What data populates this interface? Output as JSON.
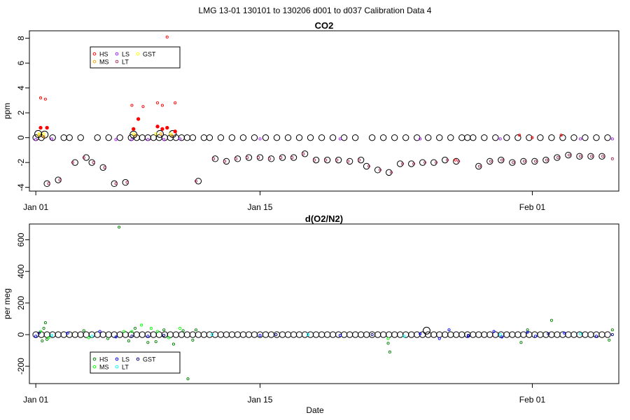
{
  "figure": {
    "title": "LMG   13-01    130101 to 130206    d001 to d037   Calibration Data 4",
    "xlabel": "Date"
  },
  "chart_data": [
    {
      "type": "scatter",
      "title": "CO2",
      "ylabel": "ppm",
      "xlabel": "",
      "xlim": [
        0.6,
        37.4
      ],
      "ylim": [
        -4.3,
        8.6
      ],
      "x_ticks": [
        {
          "value": 1,
          "label": "Jan 01"
        },
        {
          "value": 15,
          "label": "Jan 15"
        },
        {
          "value": 32,
          "label": "Feb 01"
        }
      ],
      "y_ticks": [
        -4,
        -2,
        0,
        2,
        4,
        6,
        8
      ],
      "grid": false,
      "legend": {
        "position": "top-left",
        "entries": [
          {
            "name": "HS",
            "color": "#ff0000"
          },
          {
            "name": "MS",
            "color": "#ffa500"
          },
          {
            "name": "LS",
            "color": "#a020f0"
          },
          {
            "name": "LT",
            "color": "#b03060"
          },
          {
            "name": "GST",
            "color": "#ffff00"
          }
        ]
      },
      "series": [
        {
          "name": "HS",
          "color": "#ff0000",
          "points": [
            [
              1.3,
              3.2
            ],
            [
              1.6,
              3.1
            ],
            [
              7.0,
              2.6
            ],
            [
              7.7,
              2.5
            ],
            [
              8.6,
              2.8
            ],
            [
              8.9,
              2.6
            ],
            [
              9.7,
              2.8
            ],
            [
              9.2,
              8.1
            ],
            [
              1.3,
              0.8
            ],
            [
              1.7,
              0.8
            ],
            [
              7.1,
              0.7
            ],
            [
              7.4,
              1.5
            ],
            [
              8.6,
              0.9
            ],
            [
              8.9,
              0.7
            ],
            [
              9.2,
              0.8
            ],
            [
              9.7,
              0.5
            ],
            [
              27.2,
              -1.8
            ],
            [
              31.2,
              0.2
            ],
            [
              32.0,
              0.0
            ],
            [
              33.8,
              0.2
            ]
          ]
        },
        {
          "name": "MS",
          "color": "#ffa500",
          "points": [
            [
              1.2,
              0.2
            ],
            [
              1.5,
              0.1
            ],
            [
              7.2,
              0.2
            ],
            [
              8.8,
              0.3
            ],
            [
              9.5,
              0.2
            ]
          ]
        },
        {
          "name": "LS",
          "color": "#a020f0",
          "points": [
            [
              1.0,
              -0.15
            ],
            [
              2.0,
              -0.1
            ],
            [
              6.0,
              -0.15
            ],
            [
              7.0,
              -0.15
            ],
            [
              8.0,
              -0.15
            ],
            [
              9.0,
              -0.15
            ],
            [
              10.0,
              -0.1
            ],
            [
              15.0,
              -0.1
            ],
            [
              20.0,
              -0.1
            ],
            [
              25.0,
              -0.1
            ],
            [
              30.0,
              -0.1
            ],
            [
              35.0,
              -0.1
            ],
            [
              37.0,
              -0.1
            ]
          ]
        },
        {
          "name": "LT",
          "color": "#b03060",
          "points": [
            [
              1.8,
              -3.7
            ],
            [
              2.5,
              -3.4
            ],
            [
              3.3,
              -2.0
            ],
            [
              4.0,
              -1.6
            ],
            [
              4.6,
              -2.0
            ],
            [
              5.3,
              -2.4
            ],
            [
              6.0,
              -3.7
            ],
            [
              6.7,
              -3.6
            ],
            [
              11.0,
              -3.5
            ],
            [
              12.1,
              -1.7
            ],
            [
              12.8,
              -1.9
            ],
            [
              13.5,
              -1.7
            ],
            [
              14.2,
              -1.6
            ],
            [
              14.9,
              -1.6
            ],
            [
              15.6,
              -1.7
            ],
            [
              16.3,
              -1.6
            ],
            [
              17.0,
              -1.6
            ],
            [
              17.7,
              -1.3
            ],
            [
              18.4,
              -1.8
            ],
            [
              19.1,
              -1.8
            ],
            [
              19.8,
              -1.8
            ],
            [
              20.5,
              -1.9
            ],
            [
              21.2,
              -1.8
            ],
            [
              21.8,
              -2.3
            ],
            [
              22.5,
              -2.6
            ],
            [
              23.2,
              -2.8
            ],
            [
              23.9,
              -2.1
            ],
            [
              24.6,
              -2.1
            ],
            [
              25.3,
              -2.0
            ],
            [
              26.0,
              -2.0
            ],
            [
              26.7,
              -1.8
            ],
            [
              27.4,
              -1.9
            ],
            [
              28.7,
              -2.3
            ],
            [
              29.4,
              -1.9
            ],
            [
              30.1,
              -1.8
            ],
            [
              30.8,
              -2.0
            ],
            [
              31.5,
              -1.9
            ],
            [
              32.2,
              -1.9
            ],
            [
              32.9,
              -1.8
            ],
            [
              33.6,
              -1.6
            ],
            [
              34.3,
              -1.4
            ],
            [
              35.0,
              -1.5
            ],
            [
              35.7,
              -1.5
            ],
            [
              36.4,
              -1.5
            ],
            [
              37.0,
              -1.7
            ]
          ]
        },
        {
          "name": "GST",
          "color": "#ffff00",
          "points": [
            [
              1.2,
              0.3
            ],
            [
              1.5,
              0.3
            ],
            [
              7.1,
              0.3
            ],
            [
              8.5,
              0.3
            ],
            [
              9.4,
              0.3
            ]
          ]
        }
      ],
      "reference_markers": {
        "color": "#000000",
        "note": "large open circles at each calibration run"
      }
    },
    {
      "type": "scatter",
      "title": "d(O2/N2)",
      "ylabel": "per meg",
      "xlabel": "Date",
      "xlim": [
        0.6,
        37.4
      ],
      "ylim": [
        -310,
        700
      ],
      "x_ticks": [
        {
          "value": 1,
          "label": "Jan 01"
        },
        {
          "value": 15,
          "label": "Jan 15"
        },
        {
          "value": 32,
          "label": "Feb 01"
        }
      ],
      "y_ticks": [
        -200,
        0,
        200,
        400,
        600
      ],
      "grid": false,
      "legend": {
        "position": "bottom-left",
        "entries": [
          {
            "name": "HS",
            "color": "#008000"
          },
          {
            "name": "MS",
            "color": "#00ff00"
          },
          {
            "name": "LS",
            "color": "#0000ff"
          },
          {
            "name": "LT",
            "color": "#00ffff"
          },
          {
            "name": "GST",
            "color": "#000080"
          }
        ]
      },
      "series": [
        {
          "name": "HS",
          "color": "#008000",
          "points": [
            [
              1.6,
              75
            ],
            [
              1.5,
              40
            ],
            [
              1.7,
              -30
            ],
            [
              1.4,
              -40
            ],
            [
              4.0,
              25
            ],
            [
              5.5,
              -25
            ],
            [
              6.2,
              680
            ],
            [
              6.8,
              -40
            ],
            [
              7.2,
              40
            ],
            [
              8.0,
              -50
            ],
            [
              8.5,
              -45
            ],
            [
              9.0,
              30
            ],
            [
              9.6,
              -60
            ],
            [
              10.2,
              25
            ],
            [
              10.5,
              -280
            ],
            [
              10.8,
              -35
            ],
            [
              11.0,
              30
            ],
            [
              23.0,
              -55
            ],
            [
              23.1,
              -110
            ],
            [
              31.3,
              -50
            ],
            [
              31.7,
              30
            ],
            [
              33.2,
              90
            ],
            [
              36.8,
              -35
            ],
            [
              37.0,
              30
            ]
          ]
        },
        {
          "name": "MS",
          "color": "#00ff00",
          "points": [
            [
              1.3,
              20
            ],
            [
              1.8,
              -20
            ],
            [
              4.3,
              -20
            ],
            [
              6.5,
              20
            ],
            [
              7.0,
              20
            ],
            [
              7.6,
              60
            ],
            [
              8.2,
              40
            ],
            [
              8.6,
              20
            ],
            [
              9.3,
              -20
            ],
            [
              10.0,
              40
            ],
            [
              23.0,
              -25
            ]
          ]
        },
        {
          "name": "LS",
          "color": "#0000ff",
          "points": [
            [
              1.0,
              -10
            ],
            [
              3.0,
              10
            ],
            [
              5.0,
              20
            ],
            [
              6.0,
              -15
            ],
            [
              8.0,
              -10
            ],
            [
              15.0,
              -5
            ],
            [
              20.0,
              -5
            ],
            [
              25.0,
              5
            ],
            [
              26.2,
              -25
            ],
            [
              26.8,
              30
            ],
            [
              28.0,
              -10
            ],
            [
              29.6,
              20
            ],
            [
              30.1,
              -15
            ],
            [
              31.7,
              15
            ],
            [
              32.2,
              -10
            ],
            [
              34.0,
              10
            ],
            [
              36.0,
              -10
            ]
          ]
        },
        {
          "name": "LT",
          "color": "#00ffff",
          "points": [
            [
              2.0,
              -5
            ],
            [
              4.5,
              -10
            ],
            [
              12.0,
              0
            ],
            [
              18.0,
              0
            ],
            [
              24.0,
              -10
            ],
            [
              30.0,
              0
            ],
            [
              35.0,
              5
            ]
          ]
        },
        {
          "name": "GST",
          "color": "#000080",
          "points": [
            [
              1.2,
              10
            ],
            [
              7.0,
              -10
            ],
            [
              9.0,
              -5
            ],
            [
              16.0,
              0
            ],
            [
              22.0,
              0
            ],
            [
              28.0,
              -5
            ],
            [
              33.0,
              5
            ],
            [
              37.0,
              0
            ]
          ]
        }
      ],
      "reference_markers": {
        "color": "#000000",
        "note": "large open circles at each calibration run"
      }
    }
  ]
}
